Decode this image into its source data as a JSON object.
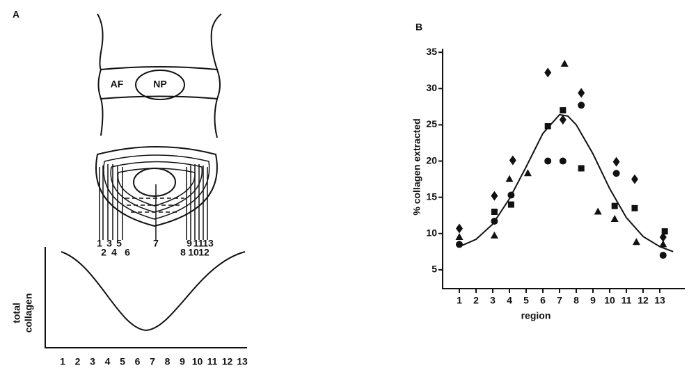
{
  "panel_a": {
    "label": "A",
    "af": "AF",
    "np": "NP",
    "regions_top": [
      "1",
      "3",
      "5",
      "7",
      "9",
      "11",
      "13"
    ],
    "regions_bottom": [
      "2",
      "4",
      "6",
      "8",
      "10",
      "12"
    ],
    "y_label_1": "total",
    "y_label_2": "collagen",
    "x_labels": [
      "1",
      "2",
      "3",
      "4",
      "5",
      "6",
      "7",
      "8",
      "9",
      "10",
      "11",
      "12",
      "13"
    ]
  },
  "chart_data": {
    "type": "scatter",
    "title": "B",
    "x_label": "region",
    "y_label": "% collagen extracted",
    "xlim": [
      0,
      14.5
    ],
    "ylim": [
      2.4,
      35.5
    ],
    "xticks": [
      1,
      2,
      3,
      4,
      5,
      6,
      7,
      8,
      9,
      10,
      11,
      12,
      13
    ],
    "yticks": [
      5,
      10,
      15,
      20,
      25,
      30,
      35
    ],
    "series": [
      {
        "marker": "diamond",
        "color": "#111111",
        "x": [
          1,
          3.1,
          4.2,
          6.3,
          7.2,
          8.3,
          10.4,
          11.5,
          13.2
        ],
        "values": [
          10.7,
          15.2,
          20.1,
          32.2,
          25.7,
          29.4,
          19.9,
          17.5,
          9.5
        ]
      },
      {
        "marker": "circle",
        "color": "#111111",
        "x": [
          1,
          3.1,
          4.1,
          6.3,
          7.2,
          8.3,
          10.4,
          13.2
        ],
        "values": [
          8.5,
          11.7,
          15.3,
          20,
          20,
          27.7,
          18.3,
          7
        ]
      },
      {
        "marker": "square",
        "color": "#111111",
        "x": [
          3.1,
          4.1,
          6.3,
          7.2,
          8.3,
          10.3,
          11.5,
          13.3
        ],
        "values": [
          13,
          14,
          24.8,
          27,
          19,
          13.8,
          13.5,
          10.3
        ]
      },
      {
        "marker": "triangle",
        "color": "#111111",
        "x": [
          1,
          3.1,
          4,
          5.1,
          7.3,
          9.3,
          10.3,
          11.6,
          13.2
        ],
        "values": [
          9.5,
          9.7,
          17.5,
          18.3,
          33.4,
          13,
          12,
          8.8,
          8.5
        ]
      }
    ],
    "fit": {
      "color": "#111111",
      "x": [
        1,
        2,
        3,
        4,
        5,
        6,
        7,
        7.5,
        8,
        9,
        10,
        11,
        12,
        13,
        13.8
      ],
      "values": [
        8.2,
        9.2,
        11.3,
        14.8,
        19.2,
        23.8,
        26.4,
        26.2,
        25,
        21,
        16.2,
        12.2,
        9.6,
        8.2,
        7.5
      ]
    }
  }
}
